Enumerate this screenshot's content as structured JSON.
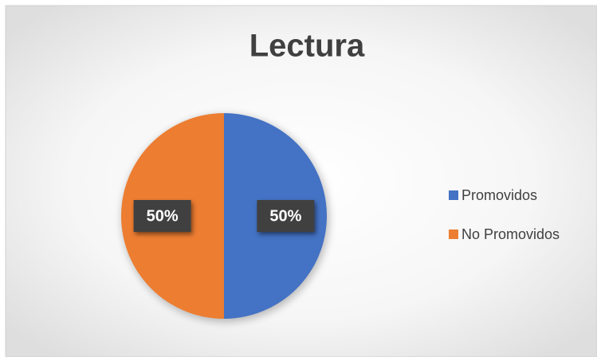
{
  "chart_data": {
    "type": "pie",
    "title": "Lectura",
    "categories": [
      "Promovidos",
      "No Promovidos"
    ],
    "values": [
      50,
      50
    ],
    "value_labels": [
      "50%",
      "50%"
    ],
    "colors": [
      "#4472c4",
      "#ed7d31"
    ],
    "legend": "right"
  }
}
